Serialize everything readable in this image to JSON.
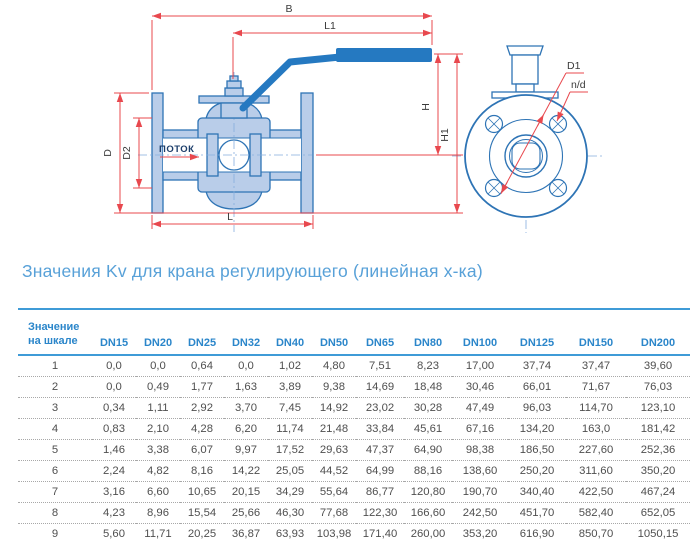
{
  "section_title": "Значения Kv для крана регулирующего (линейная х-ка)",
  "drawing": {
    "dim_labels": {
      "B": "B",
      "L1": "L1",
      "H": "H",
      "H1": "H1",
      "D": "D",
      "D2": "D2",
      "L": "L",
      "D1": "D1",
      "nd": "n/d"
    },
    "flow_label": "ПОТОК",
    "colors": {
      "dimension_red": "#e8484e",
      "outline_blue": "#2e74b5",
      "fill_blue": "#b9cde9",
      "handle_blue": "#2579c1",
      "centerline_blue": "#85aede",
      "flow_text_navy": "#1c3e6b"
    }
  },
  "table": {
    "scale_header_line1": "Значение",
    "scale_header_line2": "на шкале",
    "columns": [
      "DN15",
      "DN20",
      "DN25",
      "DN32",
      "DN40",
      "DN50",
      "DN65",
      "DN80",
      "DN100",
      "DN125",
      "DN150",
      "DN200"
    ],
    "rows": [
      {
        "scale": "1",
        "values": [
          "0,0",
          "0,0",
          "0,64",
          "0,0",
          "1,02",
          "4,80",
          "7,51",
          "8,23",
          "17,00",
          "37,74",
          "37,47",
          "39,60"
        ]
      },
      {
        "scale": "2",
        "values": [
          "0,0",
          "0,49",
          "1,77",
          "1,63",
          "3,89",
          "9,38",
          "14,69",
          "18,48",
          "30,46",
          "66,01",
          "71,67",
          "76,03"
        ]
      },
      {
        "scale": "3",
        "values": [
          "0,34",
          "1,11",
          "2,92",
          "3,70",
          "7,45",
          "14,92",
          "23,02",
          "30,28",
          "47,49",
          "96,03",
          "114,70",
          "123,10"
        ]
      },
      {
        "scale": "4",
        "values": [
          "0,83",
          "2,10",
          "4,28",
          "6,20",
          "11,74",
          "21,48",
          "33,84",
          "45,61",
          "67,16",
          "134,20",
          "163,0",
          "181,42"
        ]
      },
      {
        "scale": "5",
        "values": [
          "1,46",
          "3,38",
          "6,07",
          "9,97",
          "17,52",
          "29,63",
          "47,37",
          "64,90",
          "98,38",
          "186,50",
          "227,60",
          "252,36"
        ]
      },
      {
        "scale": "6",
        "values": [
          "2,24",
          "4,82",
          "8,16",
          "14,22",
          "25,05",
          "44,52",
          "64,99",
          "88,16",
          "138,60",
          "250,20",
          "311,60",
          "350,20"
        ]
      },
      {
        "scale": "7",
        "values": [
          "3,16",
          "6,60",
          "10,65",
          "20,15",
          "34,29",
          "55,64",
          "86,77",
          "120,80",
          "190,70",
          "340,40",
          "422,50",
          "467,24"
        ]
      },
      {
        "scale": "8",
        "values": [
          "4,23",
          "8,96",
          "15,54",
          "25,66",
          "46,30",
          "77,68",
          "122,30",
          "166,60",
          "242,50",
          "451,70",
          "582,40",
          "652,05"
        ]
      },
      {
        "scale": "9",
        "values": [
          "5,60",
          "11,71",
          "20,25",
          "36,87",
          "63,93",
          "103,98",
          "171,40",
          "260,00",
          "353,20",
          "616,90",
          "850,70",
          "1050,15"
        ]
      }
    ],
    "colors": {
      "header_text": "#2b86ca",
      "border_blue": "#3f9bd7",
      "cell_text": "#4f4f4f",
      "title_blue": "#58a1d8"
    }
  }
}
